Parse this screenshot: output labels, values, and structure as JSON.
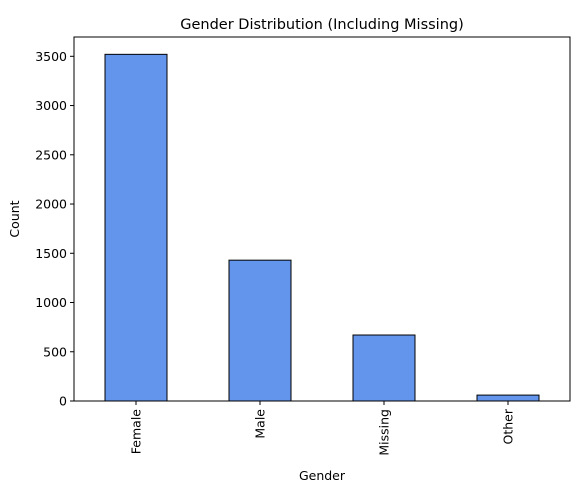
{
  "chart_data": {
    "type": "bar",
    "title": "Gender Distribution (Including Missing)",
    "xlabel": "Gender",
    "ylabel": "Count",
    "categories": [
      "Female",
      "Male",
      "Missing",
      "Other"
    ],
    "values": [
      3520,
      1430,
      670,
      60
    ],
    "ylim": [
      0,
      3696
    ],
    "yticks": [
      0,
      500,
      1000,
      1500,
      2000,
      2500,
      3000,
      3500
    ],
    "grid": false,
    "legend": "none",
    "colors": {
      "bar_fill": "#6495ED",
      "bar_edge": "#000000",
      "axis": "#000000"
    }
  }
}
